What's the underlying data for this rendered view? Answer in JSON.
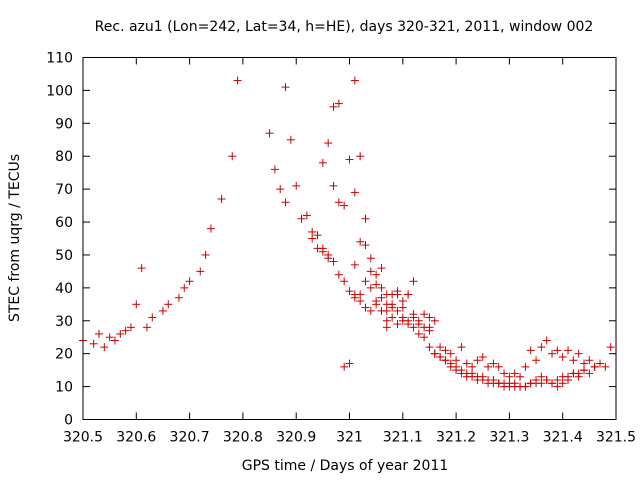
{
  "chart_data": {
    "type": "scatter",
    "title": "Rec. azu1 (Lon=242, Lat=34, h=HE), days 320-321, 2011, window 002",
    "xlabel": "GPS time / Days of year 2011",
    "ylabel": "STEC from uqrg / TECUs",
    "xlim": [
      320.5,
      321.5
    ],
    "ylim": [
      0,
      110
    ],
    "x_ticks": [
      "320.5",
      "320.6",
      "320.7",
      "320.8",
      "320.9",
      "321",
      "321.1",
      "321.2",
      "321.3",
      "321.4",
      "321.5"
    ],
    "x_tick_values": [
      320.5,
      320.6,
      320.7,
      320.8,
      320.9,
      321.0,
      321.1,
      321.2,
      321.3,
      321.4,
      321.5
    ],
    "y_ticks": [
      "0",
      "10",
      "20",
      "30",
      "40",
      "50",
      "60",
      "70",
      "80",
      "90",
      "100",
      "110"
    ],
    "y_tick_values": [
      0,
      10,
      20,
      30,
      40,
      50,
      60,
      70,
      80,
      90,
      100,
      110
    ],
    "grid": false,
    "legend": "none",
    "color": "#cc0000",
    "series": [
      {
        "x": [
          320.5,
          320.52,
          320.53,
          320.54,
          320.55,
          320.56,
          320.57,
          320.58,
          320.59,
          320.6,
          320.61,
          320.62,
          320.63,
          320.65,
          320.66,
          320.68,
          320.69,
          320.7,
          320.72,
          320.73,
          320.74,
          320.76,
          320.78,
          320.79,
          320.85,
          320.86,
          320.87,
          320.88,
          320.88,
          320.89,
          320.9,
          320.91,
          320.92,
          320.93,
          320.94,
          320.95,
          320.96,
          320.96,
          320.97,
          320.98,
          320.99,
          321.0,
          321.01,
          321.02,
          321.03,
          321.04,
          321.05,
          321.06,
          321.07,
          321.07,
          321.08,
          321.09,
          321.1,
          321.11,
          321.12,
          321.13,
          321.14,
          321.15,
          321.16,
          321.17,
          321.18,
          321.19,
          321.2,
          321.21,
          321.22,
          321.23,
          321.24,
          321.25,
          321.26,
          321.27,
          321.28,
          321.29,
          321.3,
          321.31,
          321.32,
          321.33,
          321.34,
          321.35,
          321.36,
          321.37,
          321.38,
          321.39,
          321.4,
          321.41,
          321.42,
          321.43,
          321.44,
          321.45,
          321.46,
          321.47,
          321.48,
          321.49,
          320.93,
          320.94,
          320.95,
          320.96,
          320.97,
          320.98,
          320.99,
          321.0,
          321.01,
          321.02,
          321.03,
          321.04,
          321.05,
          321.06,
          321.07,
          321.08,
          321.09,
          321.1,
          321.11,
          321.12,
          321.13,
          321.14,
          321.15,
          321.16,
          321.17,
          321.18,
          321.19,
          321.2,
          321.21,
          321.22,
          321.23,
          321.24,
          321.25,
          321.26,
          321.27,
          321.28,
          321.29,
          321.3,
          321.31,
          321.32,
          321.33,
          321.34,
          321.35,
          321.36,
          321.37,
          321.38,
          321.39,
          321.4,
          321.41,
          321.42,
          321.43,
          321.44,
          321.45,
          321.46,
          320.99,
          321.0,
          321.01,
          321.02,
          321.03,
          321.04,
          321.05,
          321.06,
          321.07,
          321.08,
          321.09,
          321.1,
          321.11,
          321.12,
          321.13,
          321.14,
          321.15,
          321.16,
          321.17,
          321.18,
          321.19,
          321.2,
          321.21,
          321.22,
          321.23,
          321.24,
          321.25,
          321.26,
          321.27,
          321.28,
          321.29,
          321.3,
          321.31,
          321.32,
          321.33,
          321.34,
          321.35,
          321.36,
          321.37,
          321.38,
          321.39,
          321.4,
          321.41,
          321.42,
          321.43,
          321.44,
          320.95,
          320.97,
          320.98,
          321.01,
          321.04,
          321.08,
          321.1,
          321.12,
          321.15,
          321.01,
          321.03,
          321.06,
          321.09,
          321.11,
          321.07,
          321.05,
          321.02
        ],
        "y": [
          24,
          23,
          26,
          22,
          25,
          24,
          26,
          27,
          28,
          35,
          46,
          28,
          31,
          33,
          35,
          37,
          40,
          42,
          45,
          50,
          58,
          67,
          80,
          103,
          87,
          76,
          70,
          101,
          66,
          85,
          71,
          61,
          62,
          57,
          56,
          52,
          49,
          84,
          95,
          96,
          65,
          79,
          69,
          54,
          53,
          45,
          44,
          46,
          38,
          33,
          35,
          38,
          34,
          38,
          42,
          29,
          28,
          27,
          30,
          22,
          21,
          20,
          18,
          22,
          17,
          16,
          18,
          19,
          16,
          17,
          16,
          14,
          13,
          14,
          13,
          16,
          21,
          18,
          22,
          24,
          20,
          21,
          19,
          21,
          18,
          20,
          17,
          18,
          16,
          17,
          16,
          22,
          55,
          52,
          51,
          50,
          48,
          44,
          42,
          39,
          38,
          36,
          34,
          33,
          35,
          33,
          30,
          31,
          29,
          30,
          29,
          28,
          26,
          25,
          22,
          20,
          19,
          18,
          17,
          16,
          15,
          14,
          14,
          13,
          13,
          12,
          12,
          11,
          11,
          11,
          11,
          10,
          10,
          11,
          12,
          13,
          12,
          11,
          10,
          11,
          12,
          14,
          13,
          15,
          14,
          16,
          16,
          17,
          103,
          80,
          61,
          49,
          41,
          37,
          35,
          34,
          33,
          31,
          30,
          31,
          30,
          32,
          28,
          20,
          19,
          18,
          16,
          15,
          14,
          13,
          13,
          12,
          12,
          11,
          11,
          11,
          10,
          10,
          10,
          10,
          10,
          11,
          11,
          11,
          12,
          11,
          12,
          13,
          13,
          14,
          14,
          15,
          78,
          71,
          66,
          47,
          40,
          38,
          36,
          32,
          31,
          37,
          42,
          40,
          39,
          38,
          28,
          36,
          38
        ]
      }
    ]
  }
}
